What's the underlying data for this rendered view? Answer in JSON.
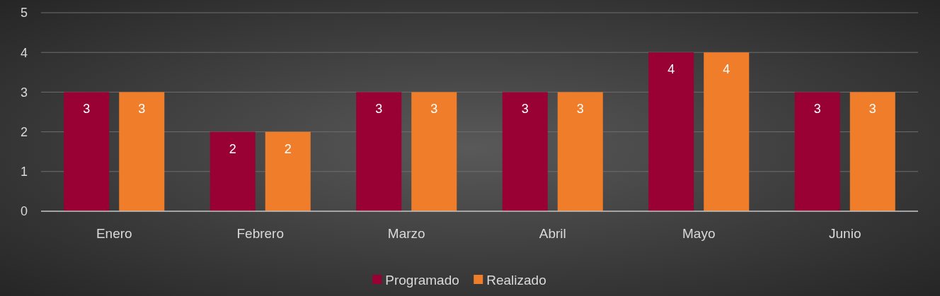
{
  "chart_data": {
    "type": "bar",
    "categories": [
      "Enero",
      "Febrero",
      "Marzo",
      "Abril",
      "Mayo",
      "Junio"
    ],
    "series": [
      {
        "name": "Programado",
        "color": "#990033",
        "values": [
          3,
          2,
          3,
          3,
          4,
          3
        ]
      },
      {
        "name": "Realizado",
        "color": "#f07d2a",
        "values": [
          3,
          2,
          3,
          3,
          4,
          3
        ]
      }
    ],
    "ylim": [
      0,
      5
    ],
    "yticks": [
      0,
      1,
      2,
      3,
      4,
      5
    ],
    "grid": "y",
    "legend": "bottom",
    "data_labels": true
  }
}
